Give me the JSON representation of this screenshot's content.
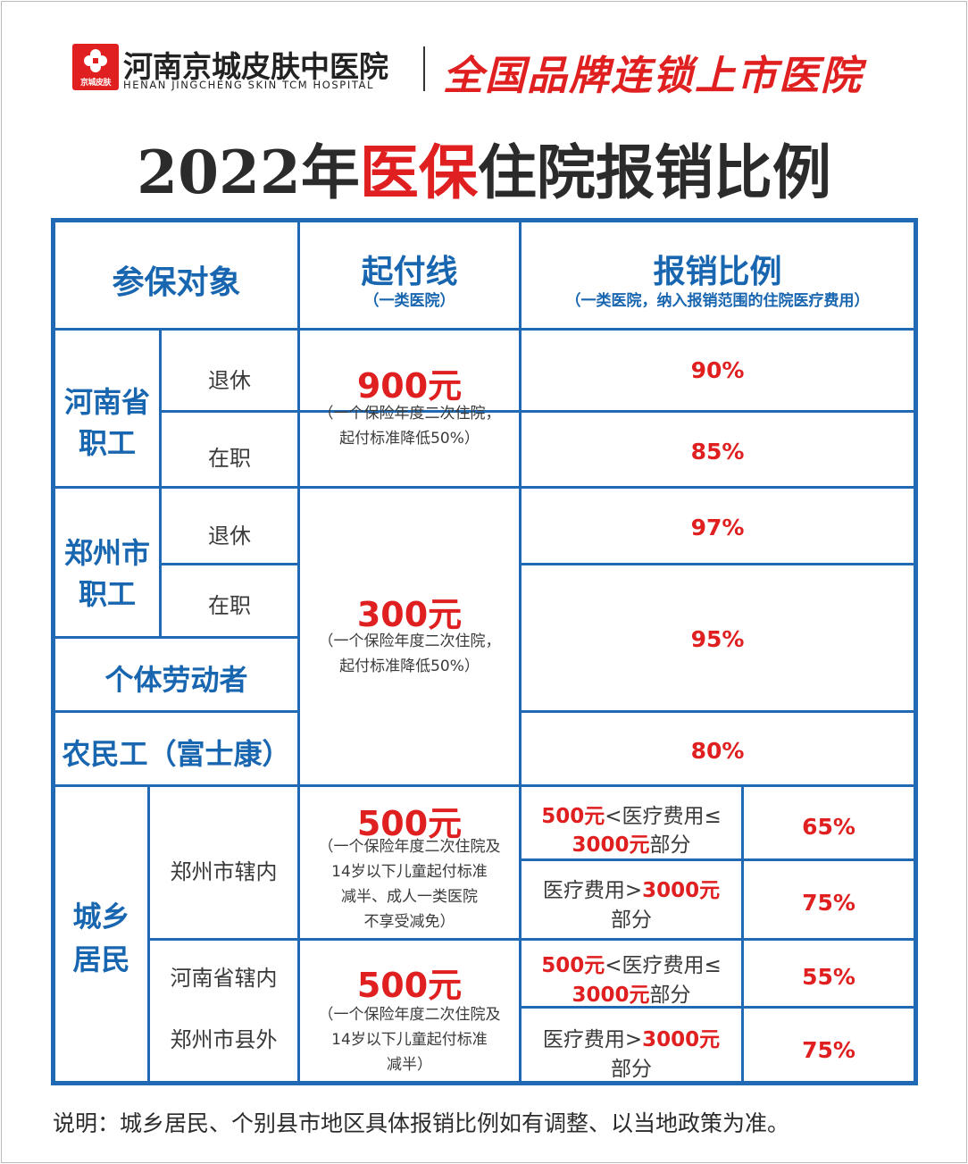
{
  "header": {
    "logo_caption": "京城皮肤",
    "hospital_name_cn": "河南京城皮肤中医院",
    "hospital_name_en": "HENAN JINGCHENG SKIN TCM HOSPITAL",
    "slogan": "全国品牌连锁上市医院"
  },
  "title": {
    "prefix": "2022年",
    "highlight": "医保",
    "suffix": "住院报销比例"
  },
  "table": {
    "headers": {
      "insured": "参保对象",
      "deductible": "起付线",
      "deductible_note": "（一类医院）",
      "ratio": "报销比例",
      "ratio_note": "（一类医院，纳入报销范围的住院医疗费用）"
    },
    "henan_staff": {
      "group": [
        "河南省",
        "职工"
      ],
      "retired": "退休",
      "employed": "在职",
      "deductible": "900元",
      "note": [
        "（一个保险年度二次住院，",
        "起付标准降低50%）"
      ],
      "retired_ratio": "90%",
      "employed_ratio": "85%"
    },
    "zhengzhou_staff": {
      "group": [
        "郑州市",
        "职工"
      ],
      "retired": "退休",
      "employed": "在职",
      "retired_ratio": "97%",
      "employed_ratio": "95%"
    },
    "individual_worker": "个体劳动者",
    "migrant_worker": "农民工（富士康）",
    "migrant_ratio": "80%",
    "shared_deductible": {
      "amount": "300元",
      "note": [
        "（一个保险年度二次住院，",
        "起付标准降低50%）"
      ]
    },
    "residents": {
      "group": [
        "城乡",
        "居民"
      ],
      "zhengzhou_inner": {
        "area": "郑州市辖内",
        "deductible": "500元",
        "note": [
          "（一个保险年度二次住院及",
          "14岁以下儿童起付标准",
          "减半、成人一类医院",
          "不享受减免）"
        ],
        "tier1": {
          "amt": "500元",
          "text1": "<医疗费用≤",
          "amt2": "3000元",
          "text2": "部分",
          "ratio": "65%"
        },
        "tier2": {
          "text1": "医疗费用>",
          "amt": "3000元",
          "text2": "部分",
          "ratio": "75%"
        }
      },
      "outer": {
        "area1": "河南省辖内",
        "area2": "郑州市县外",
        "deductible": "500元",
        "note": [
          "（一个保险年度二次住院及",
          "14岁以下儿童起付标准",
          "减半）"
        ],
        "tier1": {
          "amt": "500元",
          "text1": "<医疗费用≤",
          "amt2": "3000元",
          "text2": "部分",
          "ratio": "55%"
        },
        "tier2": {
          "text1": "医疗费用>",
          "amt": "3000元",
          "text2": "部分",
          "ratio": "75%"
        }
      }
    }
  },
  "footer": "说明：城乡居民、个别县市地区具体报销比例如有调整、以当地政策为准。",
  "colors": {
    "blue": "#1f69b5",
    "red": "#e02020",
    "text": "#333333"
  }
}
